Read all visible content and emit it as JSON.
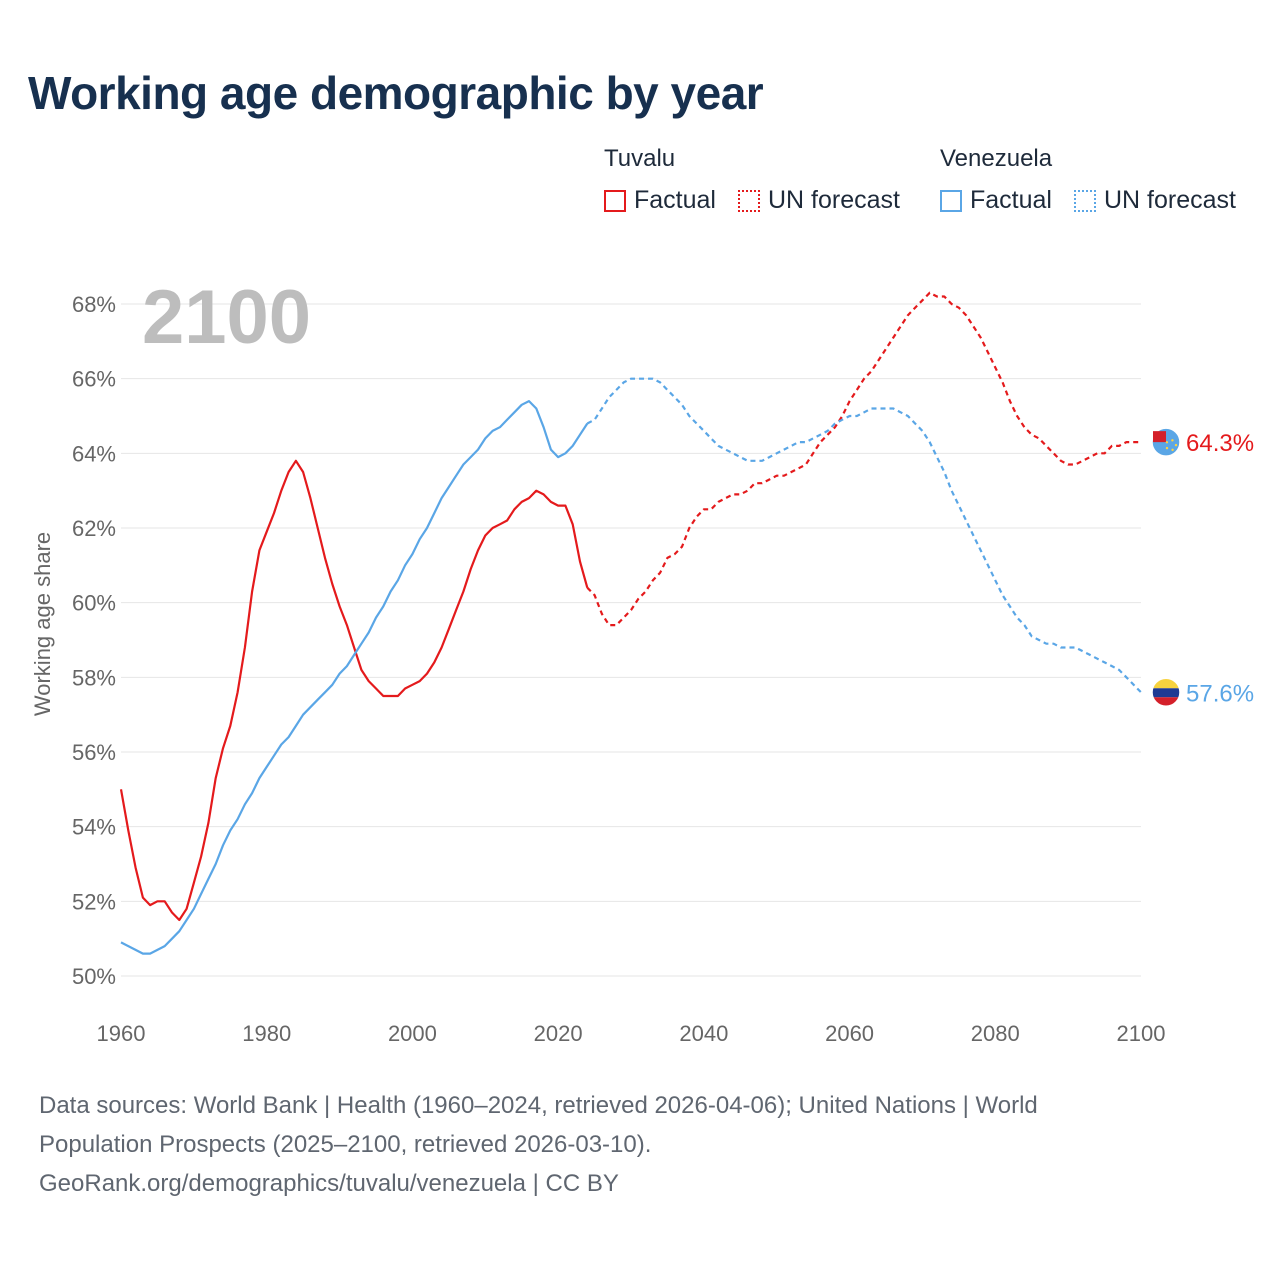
{
  "title": "Working age demographic by year",
  "legend": {
    "groups": [
      {
        "name": "Tuvalu",
        "color": "#e41a1c",
        "items": [
          {
            "label": "Factual",
            "style": "solid"
          },
          {
            "label": "UN forecast",
            "style": "dotted"
          }
        ]
      },
      {
        "name": "Venezuela",
        "color": "#5aa6e6",
        "items": [
          {
            "label": "Factual",
            "style": "solid"
          },
          {
            "label": "UN forecast",
            "style": "dotted"
          }
        ]
      }
    ]
  },
  "footer": {
    "line1": "Data sources: World Bank | Health (1960–2024, retrieved 2026-04-06); United Nations | World",
    "line2": "Population Prospects (2025–2100, retrieved 2026-03-10).",
    "line3": "GeoRank.org/demographics/tuvalu/venezuela | CC BY"
  },
  "chart_data": {
    "type": "line",
    "title": "Working age demographic by year",
    "year_label": "2100",
    "ylabel": "Working age share",
    "xlabel": "",
    "xlim": [
      1960,
      2100
    ],
    "ylim": [
      50,
      68
    ],
    "x_ticks": [
      "1960",
      "1980",
      "2000",
      "2020",
      "2040",
      "2060",
      "2080",
      "2100"
    ],
    "y_ticks": [
      "50%",
      "52%",
      "54%",
      "56%",
      "58%",
      "60%",
      "62%",
      "64%",
      "66%",
      "68%"
    ],
    "forecast_start_year": 2024,
    "series": [
      {
        "name": "Tuvalu",
        "color": "#e41a1c",
        "end_label": "64.3%",
        "points": [
          [
            1960,
            55.0
          ],
          [
            1961,
            53.9
          ],
          [
            1962,
            52.9
          ],
          [
            1963,
            52.1
          ],
          [
            1964,
            51.9
          ],
          [
            1965,
            52.0
          ],
          [
            1966,
            52.0
          ],
          [
            1967,
            51.7
          ],
          [
            1968,
            51.5
          ],
          [
            1969,
            51.8
          ],
          [
            1970,
            52.5
          ],
          [
            1971,
            53.2
          ],
          [
            1972,
            54.1
          ],
          [
            1973,
            55.3
          ],
          [
            1974,
            56.1
          ],
          [
            1975,
            56.7
          ],
          [
            1976,
            57.6
          ],
          [
            1977,
            58.8
          ],
          [
            1978,
            60.3
          ],
          [
            1979,
            61.4
          ],
          [
            1980,
            61.9
          ],
          [
            1981,
            62.4
          ],
          [
            1982,
            63.0
          ],
          [
            1983,
            63.5
          ],
          [
            1984,
            63.8
          ],
          [
            1985,
            63.5
          ],
          [
            1986,
            62.8
          ],
          [
            1987,
            62.0
          ],
          [
            1988,
            61.2
          ],
          [
            1989,
            60.5
          ],
          [
            1990,
            59.9
          ],
          [
            1991,
            59.4
          ],
          [
            1992,
            58.8
          ],
          [
            1993,
            58.2
          ],
          [
            1994,
            57.9
          ],
          [
            1995,
            57.7
          ],
          [
            1996,
            57.5
          ],
          [
            1997,
            57.5
          ],
          [
            1998,
            57.5
          ],
          [
            1999,
            57.7
          ],
          [
            2000,
            57.8
          ],
          [
            2001,
            57.9
          ],
          [
            2002,
            58.1
          ],
          [
            2003,
            58.4
          ],
          [
            2004,
            58.8
          ],
          [
            2005,
            59.3
          ],
          [
            2006,
            59.8
          ],
          [
            2007,
            60.3
          ],
          [
            2008,
            60.9
          ],
          [
            2009,
            61.4
          ],
          [
            2010,
            61.8
          ],
          [
            2011,
            62.0
          ],
          [
            2012,
            62.1
          ],
          [
            2013,
            62.2
          ],
          [
            2014,
            62.5
          ],
          [
            2015,
            62.7
          ],
          [
            2016,
            62.8
          ],
          [
            2017,
            63.0
          ],
          [
            2018,
            62.9
          ],
          [
            2019,
            62.7
          ],
          [
            2020,
            62.6
          ],
          [
            2021,
            62.6
          ],
          [
            2022,
            62.1
          ],
          [
            2023,
            61.1
          ],
          [
            2024,
            60.4
          ],
          [
            2025,
            60.2
          ],
          [
            2026,
            59.7
          ],
          [
            2027,
            59.4
          ],
          [
            2028,
            59.4
          ],
          [
            2029,
            59.6
          ],
          [
            2030,
            59.8
          ],
          [
            2031,
            60.1
          ],
          [
            2032,
            60.3
          ],
          [
            2033,
            60.6
          ],
          [
            2034,
            60.8
          ],
          [
            2035,
            61.2
          ],
          [
            2036,
            61.3
          ],
          [
            2037,
            61.5
          ],
          [
            2038,
            62.0
          ],
          [
            2039,
            62.3
          ],
          [
            2040,
            62.5
          ],
          [
            2041,
            62.5
          ],
          [
            2042,
            62.7
          ],
          [
            2043,
            62.8
          ],
          [
            2044,
            62.9
          ],
          [
            2045,
            62.9
          ],
          [
            2046,
            63.0
          ],
          [
            2047,
            63.2
          ],
          [
            2048,
            63.2
          ],
          [
            2049,
            63.3
          ],
          [
            2050,
            63.4
          ],
          [
            2051,
            63.4
          ],
          [
            2052,
            63.5
          ],
          [
            2053,
            63.6
          ],
          [
            2054,
            63.7
          ],
          [
            2055,
            64.0
          ],
          [
            2056,
            64.3
          ],
          [
            2057,
            64.5
          ],
          [
            2058,
            64.7
          ],
          [
            2059,
            65.0
          ],
          [
            2060,
            65.4
          ],
          [
            2061,
            65.7
          ],
          [
            2062,
            66.0
          ],
          [
            2063,
            66.2
          ],
          [
            2064,
            66.5
          ],
          [
            2065,
            66.8
          ],
          [
            2066,
            67.1
          ],
          [
            2067,
            67.4
          ],
          [
            2068,
            67.7
          ],
          [
            2069,
            67.9
          ],
          [
            2070,
            68.1
          ],
          [
            2071,
            68.3
          ],
          [
            2072,
            68.2
          ],
          [
            2073,
            68.2
          ],
          [
            2074,
            68.0
          ],
          [
            2075,
            67.9
          ],
          [
            2076,
            67.7
          ],
          [
            2077,
            67.4
          ],
          [
            2078,
            67.1
          ],
          [
            2079,
            66.7
          ],
          [
            2080,
            66.3
          ],
          [
            2081,
            65.9
          ],
          [
            2082,
            65.4
          ],
          [
            2083,
            65.0
          ],
          [
            2084,
            64.7
          ],
          [
            2085,
            64.5
          ],
          [
            2086,
            64.4
          ],
          [
            2087,
            64.2
          ],
          [
            2088,
            64.0
          ],
          [
            2089,
            63.8
          ],
          [
            2090,
            63.7
          ],
          [
            2091,
            63.7
          ],
          [
            2092,
            63.8
          ],
          [
            2093,
            63.9
          ],
          [
            2094,
            64.0
          ],
          [
            2095,
            64.0
          ],
          [
            2096,
            64.2
          ],
          [
            2097,
            64.2
          ],
          [
            2098,
            64.3
          ],
          [
            2099,
            64.3
          ],
          [
            2100,
            64.3
          ]
        ]
      },
      {
        "name": "Venezuela",
        "color": "#5aa6e6",
        "end_label": "57.6%",
        "points": [
          [
            1960,
            50.9
          ],
          [
            1961,
            50.8
          ],
          [
            1962,
            50.7
          ],
          [
            1963,
            50.6
          ],
          [
            1964,
            50.6
          ],
          [
            1965,
            50.7
          ],
          [
            1966,
            50.8
          ],
          [
            1967,
            51.0
          ],
          [
            1968,
            51.2
          ],
          [
            1969,
            51.5
          ],
          [
            1970,
            51.8
          ],
          [
            1971,
            52.2
          ],
          [
            1972,
            52.6
          ],
          [
            1973,
            53.0
          ],
          [
            1974,
            53.5
          ],
          [
            1975,
            53.9
          ],
          [
            1976,
            54.2
          ],
          [
            1977,
            54.6
          ],
          [
            1978,
            54.9
          ],
          [
            1979,
            55.3
          ],
          [
            1980,
            55.6
          ],
          [
            1981,
            55.9
          ],
          [
            1982,
            56.2
          ],
          [
            1983,
            56.4
          ],
          [
            1984,
            56.7
          ],
          [
            1985,
            57.0
          ],
          [
            1986,
            57.2
          ],
          [
            1987,
            57.4
          ],
          [
            1988,
            57.6
          ],
          [
            1989,
            57.8
          ],
          [
            1990,
            58.1
          ],
          [
            1991,
            58.3
          ],
          [
            1992,
            58.6
          ],
          [
            1993,
            58.9
          ],
          [
            1994,
            59.2
          ],
          [
            1995,
            59.6
          ],
          [
            1996,
            59.9
          ],
          [
            1997,
            60.3
          ],
          [
            1998,
            60.6
          ],
          [
            1999,
            61.0
          ],
          [
            2000,
            61.3
          ],
          [
            2001,
            61.7
          ],
          [
            2002,
            62.0
          ],
          [
            2003,
            62.4
          ],
          [
            2004,
            62.8
          ],
          [
            2005,
            63.1
          ],
          [
            2006,
            63.4
          ],
          [
            2007,
            63.7
          ],
          [
            2008,
            63.9
          ],
          [
            2009,
            64.1
          ],
          [
            2010,
            64.4
          ],
          [
            2011,
            64.6
          ],
          [
            2012,
            64.7
          ],
          [
            2013,
            64.9
          ],
          [
            2014,
            65.1
          ],
          [
            2015,
            65.3
          ],
          [
            2016,
            65.4
          ],
          [
            2017,
            65.2
          ],
          [
            2018,
            64.7
          ],
          [
            2019,
            64.1
          ],
          [
            2020,
            63.9
          ],
          [
            2021,
            64.0
          ],
          [
            2022,
            64.2
          ],
          [
            2023,
            64.5
          ],
          [
            2024,
            64.8
          ],
          [
            2025,
            64.9
          ],
          [
            2026,
            65.2
          ],
          [
            2027,
            65.5
          ],
          [
            2028,
            65.7
          ],
          [
            2029,
            65.9
          ],
          [
            2030,
            66.0
          ],
          [
            2031,
            66.0
          ],
          [
            2032,
            66.0
          ],
          [
            2033,
            66.0
          ],
          [
            2034,
            65.9
          ],
          [
            2035,
            65.7
          ],
          [
            2036,
            65.5
          ],
          [
            2037,
            65.3
          ],
          [
            2038,
            65.0
          ],
          [
            2039,
            64.8
          ],
          [
            2040,
            64.6
          ],
          [
            2041,
            64.4
          ],
          [
            2042,
            64.2
          ],
          [
            2043,
            64.1
          ],
          [
            2044,
            64.0
          ],
          [
            2045,
            63.9
          ],
          [
            2046,
            63.8
          ],
          [
            2047,
            63.8
          ],
          [
            2048,
            63.8
          ],
          [
            2049,
            63.9
          ],
          [
            2050,
            64.0
          ],
          [
            2051,
            64.1
          ],
          [
            2052,
            64.2
          ],
          [
            2053,
            64.3
          ],
          [
            2054,
            64.3
          ],
          [
            2055,
            64.4
          ],
          [
            2056,
            64.5
          ],
          [
            2057,
            64.6
          ],
          [
            2058,
            64.8
          ],
          [
            2059,
            64.9
          ],
          [
            2060,
            65.0
          ],
          [
            2061,
            65.0
          ],
          [
            2062,
            65.1
          ],
          [
            2063,
            65.2
          ],
          [
            2064,
            65.2
          ],
          [
            2065,
            65.2
          ],
          [
            2066,
            65.2
          ],
          [
            2067,
            65.1
          ],
          [
            2068,
            65.0
          ],
          [
            2069,
            64.8
          ],
          [
            2070,
            64.6
          ],
          [
            2071,
            64.3
          ],
          [
            2072,
            63.9
          ],
          [
            2073,
            63.5
          ],
          [
            2074,
            63.0
          ],
          [
            2075,
            62.6
          ],
          [
            2076,
            62.2
          ],
          [
            2077,
            61.8
          ],
          [
            2078,
            61.4
          ],
          [
            2079,
            61.0
          ],
          [
            2080,
            60.6
          ],
          [
            2081,
            60.2
          ],
          [
            2082,
            59.9
          ],
          [
            2083,
            59.6
          ],
          [
            2084,
            59.4
          ],
          [
            2085,
            59.1
          ],
          [
            2086,
            59.0
          ],
          [
            2087,
            58.9
          ],
          [
            2088,
            58.9
          ],
          [
            2089,
            58.8
          ],
          [
            2090,
            58.8
          ],
          [
            2091,
            58.8
          ],
          [
            2092,
            58.7
          ],
          [
            2093,
            58.6
          ],
          [
            2094,
            58.5
          ],
          [
            2095,
            58.4
          ],
          [
            2096,
            58.3
          ],
          [
            2097,
            58.2
          ],
          [
            2098,
            58.0
          ],
          [
            2099,
            57.8
          ],
          [
            2100,
            57.6
          ]
        ]
      }
    ]
  }
}
